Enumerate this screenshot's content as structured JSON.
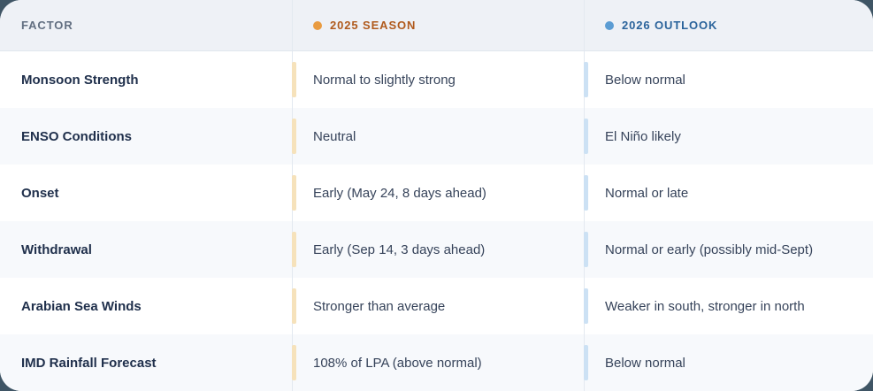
{
  "table": {
    "columns": [
      {
        "key": "factor",
        "label": "FACTOR"
      },
      {
        "key": "season2025",
        "label": "2025 SEASON",
        "dot_color": "#e99b40",
        "text_color": "#b05a1d",
        "accent_color": "#f6e2bb"
      },
      {
        "key": "outlook2026",
        "label": "2026 OUTLOOK",
        "dot_color": "#5b9cd3",
        "text_color": "#2a639b",
        "accent_color": "#cce1f4"
      }
    ],
    "rows": [
      {
        "factor": "Monsoon Strength",
        "season2025": "Normal to slightly strong",
        "outlook2026": "Below normal"
      },
      {
        "factor": "ENSO Conditions",
        "season2025": "Neutral",
        "outlook2026": "El Niño likely"
      },
      {
        "factor": "Onset",
        "season2025": "Early (May 24, 8 days ahead)",
        "outlook2026": "Normal or late"
      },
      {
        "factor": "Withdrawal",
        "season2025": "Early (Sep 14, 3 days ahead)",
        "outlook2026": "Normal or early (possibly mid-Sept)"
      },
      {
        "factor": "Arabian Sea Winds",
        "season2025": "Stronger than average",
        "outlook2026": "Weaker in south, stronger in north"
      },
      {
        "factor": "IMD Rainfall Forecast",
        "season2025": "108% of LPA (above normal)",
        "outlook2026": "Below normal"
      }
    ]
  }
}
